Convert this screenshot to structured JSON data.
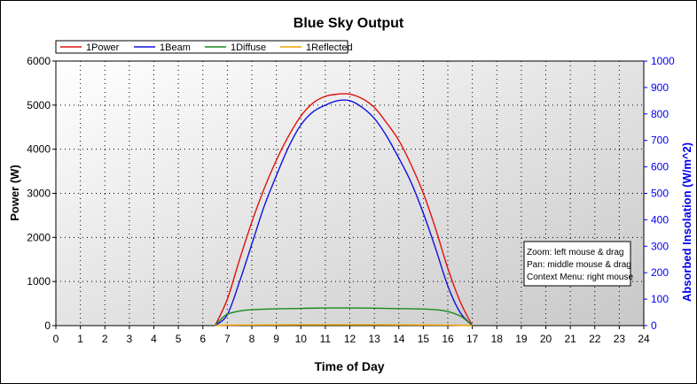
{
  "chart_data": {
    "type": "line",
    "title": "Blue Sky Output",
    "xlabel": "Time of Day",
    "ylabel": "Power (W)",
    "ylabel_right": "Absorbed Insolation (W/m^2)",
    "xlim": [
      0,
      24
    ],
    "ylim": [
      0,
      6000
    ],
    "ylim_right": [
      0,
      1000
    ],
    "x_ticks": [
      0,
      1,
      2,
      3,
      4,
      5,
      6,
      7,
      8,
      9,
      10,
      11,
      12,
      13,
      14,
      15,
      16,
      17,
      18,
      19,
      20,
      21,
      22,
      23,
      24
    ],
    "y_ticks": [
      0,
      1000,
      2000,
      3000,
      4000,
      5000,
      6000
    ],
    "y_ticks_right": [
      0,
      100,
      200,
      300,
      400,
      500,
      600,
      700,
      800,
      900,
      1000
    ],
    "grid": true,
    "legend_position": "top-left",
    "axis_colors": {
      "left": "#000000",
      "right": "#0000ee"
    },
    "series": [
      {
        "name": "1Power",
        "axis": "left",
        "color": "#e01010",
        "x": [
          6.5,
          7,
          7.5,
          8,
          8.5,
          9,
          9.5,
          10,
          10.5,
          11,
          11.5,
          12,
          12.5,
          13,
          13.5,
          14,
          14.5,
          15,
          15.5,
          16,
          16.5,
          17
        ],
        "y": [
          0,
          600,
          1500,
          2350,
          3100,
          3750,
          4300,
          4750,
          5050,
          5200,
          5250,
          5250,
          5150,
          4950,
          4600,
          4200,
          3650,
          3000,
          2200,
          1300,
          550,
          0
        ]
      },
      {
        "name": "1Beam",
        "axis": "left",
        "color": "#1010e0",
        "x": [
          6.5,
          7,
          7.5,
          8,
          8.5,
          9,
          9.5,
          10,
          10.5,
          11,
          11.5,
          12,
          12.5,
          13,
          13.5,
          14,
          14.5,
          15,
          15.5,
          16,
          16.5,
          17
        ],
        "y": [
          0,
          250,
          1000,
          1850,
          2700,
          3400,
          4050,
          4550,
          4850,
          5000,
          5100,
          5100,
          4950,
          4700,
          4300,
          3800,
          3250,
          2550,
          1750,
          900,
          300,
          0
        ]
      },
      {
        "name": "1Diffuse",
        "axis": "left",
        "color": "#1a8a1a",
        "x": [
          6.5,
          6.75,
          7,
          7.5,
          8,
          9,
          10,
          11,
          12,
          13,
          14,
          15,
          15.5,
          16,
          16.5,
          16.75,
          17
        ],
        "y": [
          0,
          150,
          260,
          330,
          360,
          380,
          390,
          400,
          400,
          395,
          385,
          375,
          360,
          320,
          220,
          120,
          0
        ]
      },
      {
        "name": "1Reflected",
        "axis": "left",
        "color": "#f0a000",
        "x": [
          6.5,
          7,
          8,
          9,
          10,
          11,
          12,
          13,
          14,
          15,
          16,
          17
        ],
        "y": [
          0,
          10,
          14,
          17,
          18,
          19,
          19,
          18,
          17,
          15,
          11,
          0
        ]
      }
    ]
  },
  "hint_box": {
    "lines": [
      "Zoom: left mouse & drag",
      "Pan: middle mouse & drag",
      "Context Menu: right mouse"
    ]
  }
}
